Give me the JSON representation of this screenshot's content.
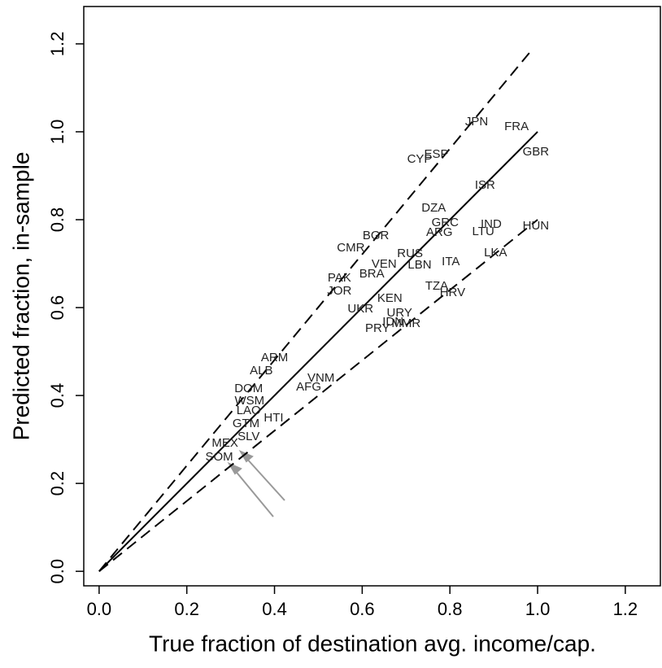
{
  "chart_data": {
    "type": "scatter",
    "xlabel": "True fraction of destination avg. income/cap.",
    "ylabel": "Predicted fraction, in-sample",
    "xlim": [
      -0.035,
      1.28
    ],
    "ylim": [
      -0.033,
      1.285
    ],
    "xticks": [
      {
        "value": 0,
        "label": "0.0"
      },
      0.2,
      0.4,
      0.6,
      0.8,
      {
        "value": 1,
        "label": "1.0"
      },
      1.2
    ],
    "yticks": [
      {
        "value": 0,
        "label": "0.0"
      },
      0.2,
      0.4,
      0.6,
      0.8,
      {
        "value": 1,
        "label": "1.0"
      },
      1.2
    ],
    "points": {
      "color": "#222222",
      "labels": [
        "JPN",
        "FRA",
        "GBR",
        "ESP",
        "CYP",
        "ISR",
        "DZA",
        "GRC",
        "ARG",
        "IND",
        "HUN",
        "LTU",
        "LKA",
        "ITA",
        "LBN",
        "RUS",
        "BGR",
        "CMR",
        "VEN",
        "PAK",
        "BRA",
        "TZA",
        "HRV",
        "JOR",
        "UKR",
        "URY",
        "KEN",
        "PRY",
        "MMR",
        "IDN",
        "ARM",
        "ALB",
        "VNM",
        "AFG",
        "DOM",
        "WSM",
        "LAO",
        "HTI",
        "GTM",
        "MEX",
        "SLV",
        "SOM"
      ],
      "x": [
        0.861,
        0.952,
        0.996,
        0.769,
        0.731,
        0.88,
        0.763,
        0.789,
        0.776,
        0.894,
        0.996,
        0.876,
        0.904,
        0.802,
        0.731,
        0.709,
        0.631,
        0.574,
        0.65,
        0.548,
        0.622,
        0.77,
        0.806,
        0.548,
        0.596,
        0.685,
        0.663,
        0.635,
        0.7,
        0.67,
        0.4,
        0.37,
        0.506,
        0.478,
        0.341,
        0.343,
        0.341,
        0.398,
        0.335,
        0.287,
        0.341,
        0.274
      ],
      "values": [
        1.022,
        1.011,
        0.954,
        0.948,
        0.937,
        0.878,
        0.826,
        0.793,
        0.77,
        0.789,
        0.785,
        0.772,
        0.724,
        0.704,
        0.696,
        0.722,
        0.763,
        0.735,
        0.698,
        0.667,
        0.676,
        0.648,
        0.633,
        0.637,
        0.596,
        0.587,
        0.62,
        0.552,
        0.563,
        0.567,
        0.485,
        0.456,
        0.439,
        0.419,
        0.415,
        0.387,
        0.365,
        0.348,
        0.335,
        0.291,
        0.306,
        0.259
      ]
    },
    "lines": [
      {
        "x": [
          0,
          1
        ],
        "values": [
          0,
          1
        ],
        "dashed": false,
        "color": "#000000"
      },
      {
        "x": [
          0,
          0.99
        ],
        "values": [
          0,
          1.19
        ],
        "dashed": true,
        "color": "#000000"
      },
      {
        "x": [
          0,
          1
        ],
        "values": [
          0,
          0.8
        ],
        "dashed": true,
        "color": "#000000"
      }
    ]
  }
}
